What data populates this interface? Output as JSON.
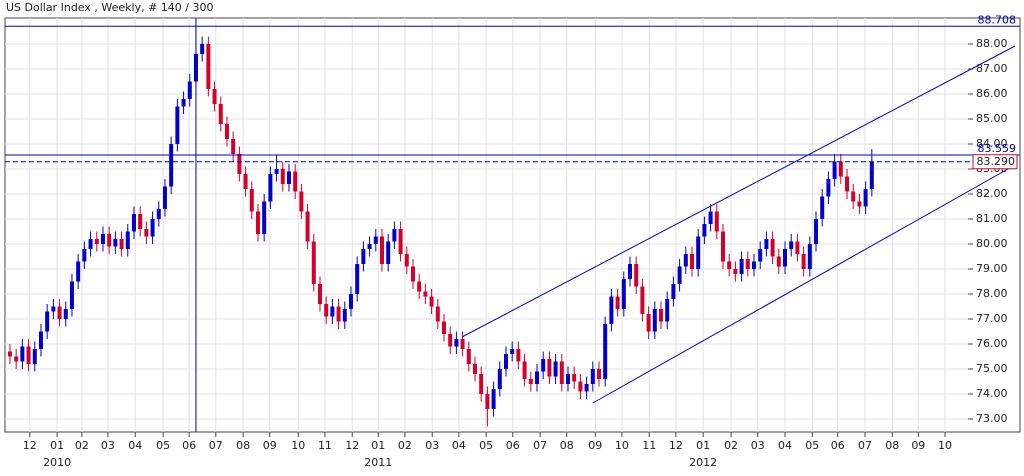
{
  "chart_data": {
    "type": "candlestick",
    "title": "US Dollar Index , Weekly, # 140 / 300",
    "up_color": "#0000cc",
    "down_color": "#d4002a",
    "grid": true,
    "open": [
      75.7,
      75.5,
      75.3,
      75.9,
      75.2,
      75.8,
      76.5,
      77.3,
      77.5,
      77.0,
      77.4,
      78.5,
      79.3,
      79.8,
      80.2,
      80.0,
      80.4,
      79.9,
      80.2,
      79.8,
      80.5,
      81.2,
      80.6,
      80.3,
      81.0,
      81.4,
      82.3,
      84.0,
      85.5,
      85.8,
      86.5,
      87.6,
      88.0,
      86.2,
      85.6,
      84.8,
      84.2,
      83.6,
      82.8,
      82.2,
      81.3,
      80.4,
      81.7,
      82.8,
      83.0,
      82.4,
      82.9,
      82.1,
      81.3,
      80.1,
      78.4,
      77.6,
      77.1,
      77.5,
      76.9,
      77.4,
      78.0,
      79.2,
      79.8,
      80.0,
      80.3,
      79.2,
      80.1,
      80.6,
      79.6,
      79.1,
      78.5,
      78.1,
      77.9,
      77.5,
      76.9,
      76.4,
      75.9,
      76.2,
      75.8,
      75.2,
      74.8,
      74.0,
      73.4,
      74.2,
      75.0,
      75.6,
      75.8,
      75.3,
      74.6,
      74.4,
      74.9,
      75.4,
      74.7,
      75.3,
      74.4,
      74.8,
      74.5,
      74.1,
      74.4,
      75.0,
      74.6,
      76.8,
      77.9,
      77.4,
      78.6,
      79.2,
      78.3,
      77.2,
      76.5,
      77.4,
      76.9,
      77.8,
      78.4,
      79.1,
      79.6,
      79.0,
      80.3,
      80.8,
      81.3,
      80.5,
      79.3,
      79.0,
      78.8,
      79.4,
      79.0,
      79.3,
      79.8,
      80.2,
      79.5,
      79.1,
      79.8,
      80.1,
      79.6,
      79.0,
      80.0,
      81.0,
      81.9,
      82.6,
      83.3,
      82.7,
      82.1,
      81.7,
      81.5,
      82.2
    ],
    "high": [
      76.0,
      75.8,
      76.2,
      76.2,
      76.1,
      76.8,
      77.6,
      77.8,
      77.8,
      77.7,
      78.8,
      79.6,
      80.1,
      80.5,
      80.5,
      80.7,
      80.7,
      80.5,
      80.5,
      80.8,
      81.5,
      81.5,
      80.9,
      81.3,
      81.7,
      82.6,
      84.3,
      85.8,
      86.1,
      86.8,
      88.708,
      88.3,
      88.3,
      86.5,
      85.9,
      85.1,
      84.5,
      83.9,
      83.1,
      82.5,
      81.6,
      82.0,
      83.1,
      83.559,
      83.3,
      83.2,
      83.2,
      82.4,
      81.6,
      80.4,
      78.7,
      77.9,
      77.8,
      77.8,
      77.7,
      78.3,
      79.5,
      80.1,
      80.3,
      80.6,
      80.6,
      80.4,
      80.9,
      80.9,
      79.9,
      79.4,
      78.8,
      78.4,
      78.2,
      77.8,
      77.2,
      76.7,
      76.5,
      76.5,
      76.1,
      75.5,
      75.1,
      74.3,
      74.5,
      75.3,
      75.9,
      76.1,
      76.1,
      75.6,
      74.9,
      75.2,
      75.7,
      75.7,
      75.6,
      75.6,
      75.1,
      75.1,
      74.8,
      74.7,
      75.3,
      75.3,
      77.1,
      78.2,
      78.2,
      78.9,
      79.5,
      79.5,
      78.6,
      77.5,
      77.7,
      77.7,
      78.1,
      78.7,
      79.4,
      79.9,
      79.9,
      80.6,
      81.1,
      81.6,
      81.6,
      80.8,
      79.6,
      79.3,
      79.7,
      79.7,
      79.6,
      80.1,
      80.5,
      80.5,
      79.8,
      80.1,
      80.4,
      80.4,
      79.9,
      80.3,
      81.3,
      82.2,
      82.9,
      83.6,
      83.6,
      83.0,
      82.4,
      82.0,
      82.5,
      83.8
    ],
    "low": [
      75.2,
      75.0,
      75.0,
      74.9,
      74.9,
      75.5,
      76.2,
      77.0,
      76.7,
      76.7,
      77.1,
      78.2,
      79.0,
      79.5,
      79.7,
      79.7,
      79.6,
      79.6,
      79.5,
      79.5,
      80.2,
      80.3,
      80.0,
      80.0,
      80.7,
      81.1,
      82.0,
      83.7,
      85.2,
      85.5,
      86.2,
      87.3,
      85.9,
      85.3,
      84.5,
      83.9,
      83.3,
      82.5,
      81.9,
      81.0,
      80.1,
      80.1,
      81.4,
      82.5,
      82.1,
      82.1,
      81.8,
      81.0,
      79.8,
      78.1,
      77.3,
      76.8,
      76.8,
      76.6,
      76.6,
      77.1,
      77.7,
      78.9,
      79.5,
      79.7,
      78.9,
      78.9,
      79.8,
      79.3,
      78.8,
      78.2,
      77.8,
      77.6,
      77.2,
      76.6,
      76.1,
      75.6,
      75.6,
      75.5,
      74.9,
      74.5,
      73.7,
      72.7,
      73.1,
      73.9,
      74.7,
      75.3,
      75.0,
      74.3,
      74.1,
      74.1,
      74.6,
      74.4,
      74.4,
      74.1,
      74.1,
      74.2,
      73.8,
      73.8,
      74.1,
      74.3,
      74.3,
      76.5,
      77.1,
      77.1,
      78.3,
      78.0,
      76.9,
      76.2,
      76.2,
      76.6,
      76.6,
      77.5,
      78.1,
      78.8,
      78.7,
      78.7,
      80.0,
      80.5,
      80.2,
      79.0,
      78.7,
      78.5,
      78.5,
      78.7,
      78.7,
      79.0,
      79.5,
      79.2,
      78.8,
      78.8,
      79.5,
      79.3,
      78.7,
      78.7,
      79.7,
      80.7,
      81.6,
      82.3,
      82.4,
      81.8,
      81.4,
      81.2,
      81.2,
      81.9
    ],
    "close": [
      75.5,
      75.3,
      75.9,
      75.2,
      75.8,
      76.5,
      77.3,
      77.5,
      77.0,
      77.4,
      78.5,
      79.3,
      79.8,
      80.2,
      80.0,
      80.4,
      79.9,
      80.2,
      79.8,
      80.5,
      81.2,
      80.6,
      80.3,
      81.0,
      81.4,
      82.3,
      84.0,
      85.5,
      85.8,
      86.5,
      87.6,
      88.0,
      86.2,
      85.6,
      84.8,
      84.2,
      83.6,
      82.8,
      82.2,
      81.3,
      80.4,
      81.7,
      82.8,
      83.0,
      82.4,
      82.9,
      82.1,
      81.3,
      80.1,
      78.4,
      77.6,
      77.1,
      77.5,
      76.9,
      77.4,
      78.0,
      79.2,
      79.8,
      80.0,
      80.3,
      79.2,
      80.1,
      80.6,
      79.6,
      79.1,
      78.5,
      78.1,
      77.9,
      77.5,
      76.9,
      76.4,
      75.9,
      76.2,
      75.8,
      75.2,
      74.8,
      74.0,
      73.4,
      74.2,
      75.0,
      75.6,
      75.8,
      75.3,
      74.6,
      74.4,
      74.9,
      75.4,
      74.7,
      75.3,
      74.4,
      74.8,
      74.5,
      74.1,
      74.4,
      75.0,
      74.6,
      76.8,
      77.9,
      77.4,
      78.6,
      79.2,
      78.3,
      77.2,
      76.5,
      77.4,
      76.9,
      77.8,
      78.4,
      79.1,
      79.6,
      79.0,
      80.3,
      80.8,
      81.3,
      80.5,
      79.3,
      79.0,
      78.8,
      79.4,
      79.0,
      79.3,
      79.8,
      80.2,
      79.5,
      79.1,
      79.8,
      80.1,
      79.6,
      79.0,
      80.0,
      81.0,
      81.9,
      82.6,
      83.3,
      82.7,
      82.1,
      81.7,
      81.5,
      82.2,
      83.29
    ],
    "xlim": [
      -0.8,
      162.9
    ],
    "ylim": [
      72.48,
      89.04
    ],
    "yticks": [
      {
        "value": 73,
        "label": "73.00"
      },
      {
        "value": 74,
        "label": "74.00"
      },
      {
        "value": 75,
        "label": "75.00"
      },
      {
        "value": 76,
        "label": "76.00"
      },
      {
        "value": 77,
        "label": "77.00"
      },
      {
        "value": 78,
        "label": "78.00"
      },
      {
        "value": 79,
        "label": "79.00"
      },
      {
        "value": 80,
        "label": "80.00"
      },
      {
        "value": 81,
        "label": "81.00"
      },
      {
        "value": 82,
        "label": "82.00"
      },
      {
        "value": 83,
        "label": "83.00"
      },
      {
        "value": 84,
        "label": "84.00"
      },
      {
        "value": 85,
        "label": "85.00"
      },
      {
        "value": 86,
        "label": "86.00"
      },
      {
        "value": 87,
        "label": "87.00"
      },
      {
        "value": 88,
        "label": "88.00"
      }
    ],
    "xticks": [
      {
        "value": 3.2,
        "label": "12"
      },
      {
        "value": 7.6,
        "label": "01"
      },
      {
        "value": 11.6,
        "label": "02"
      },
      {
        "value": 15.8,
        "label": "03"
      },
      {
        "value": 20.2,
        "label": "04"
      },
      {
        "value": 24.7,
        "label": "05"
      },
      {
        "value": 28.9,
        "label": "06"
      },
      {
        "value": 33.2,
        "label": "07"
      },
      {
        "value": 37.6,
        "label": "08"
      },
      {
        "value": 41.9,
        "label": "09"
      },
      {
        "value": 46.5,
        "label": "10"
      },
      {
        "value": 50.8,
        "label": "11"
      },
      {
        "value": 55.2,
        "label": "12"
      },
      {
        "value": 59.4,
        "label": "01"
      },
      {
        "value": 63.7,
        "label": "02"
      },
      {
        "value": 68.1,
        "label": "03"
      },
      {
        "value": 72.4,
        "label": "04"
      },
      {
        "value": 76.8,
        "label": "05"
      },
      {
        "value": 81.1,
        "label": "06"
      },
      {
        "value": 85.5,
        "label": "07"
      },
      {
        "value": 89.8,
        "label": "08"
      },
      {
        "value": 94.4,
        "label": "09"
      },
      {
        "value": 98.7,
        "label": "10"
      },
      {
        "value": 103.1,
        "label": "11"
      },
      {
        "value": 107.4,
        "label": "12"
      },
      {
        "value": 111.8,
        "label": "01"
      },
      {
        "value": 116.3,
        "label": "02"
      },
      {
        "value": 120.6,
        "label": "03"
      },
      {
        "value": 125.0,
        "label": "04"
      },
      {
        "value": 129.4,
        "label": "05"
      },
      {
        "value": 133.5,
        "label": "06"
      },
      {
        "value": 137.9,
        "label": "07"
      },
      {
        "value": 142.3,
        "label": "08"
      },
      {
        "value": 146.5,
        "label": "09"
      },
      {
        "value": 150.8,
        "label": "10"
      }
    ],
    "year_labels": [
      {
        "value": 7.6,
        "label": "2010"
      },
      {
        "value": 59.4,
        "label": "2011"
      },
      {
        "value": 111.8,
        "label": "2012"
      }
    ],
    "levels": [
      88.708,
      83.559
    ],
    "last_price": {
      "value": 83.29,
      "label": "83.290"
    },
    "crosshair_x": 30,
    "trendlines": [
      [
        [
          72.9,
          76.28
        ],
        [
          162.1,
          87.92
        ]
      ],
      [
        [
          94.0,
          73.64
        ],
        [
          162.1,
          83.16
        ]
      ]
    ]
  }
}
